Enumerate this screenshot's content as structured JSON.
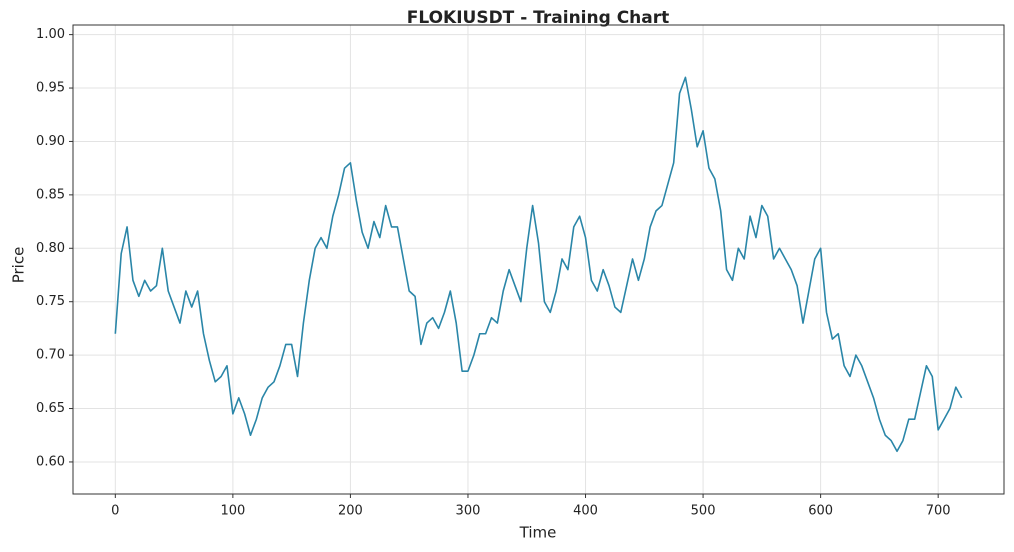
{
  "chart_data": {
    "type": "line",
    "title": "FLOKIUSDT - Training Chart",
    "x_label": "Time",
    "y_label": "Price",
    "color": "#2a86a8",
    "grid": true,
    "xlim": [
      -36,
      756
    ],
    "ylim": [
      0.57,
      1.009
    ],
    "xticks": [
      0,
      100,
      200,
      300,
      400,
      500,
      600,
      700
    ],
    "yticks": [
      {
        "value": 0.6,
        "label": "0.60"
      },
      0.65,
      {
        "value": 0.7,
        "label": "0.70"
      },
      0.75,
      {
        "value": 0.8,
        "label": "0.80"
      },
      0.85,
      {
        "value": 0.9,
        "label": "0.90"
      },
      0.95,
      {
        "value": 1,
        "label": "1.00"
      }
    ],
    "x": [
      0,
      5,
      10,
      15,
      20,
      25,
      30,
      35,
      40,
      45,
      50,
      55,
      60,
      65,
      70,
      75,
      80,
      85,
      90,
      95,
      100,
      105,
      110,
      115,
      120,
      125,
      130,
      135,
      140,
      145,
      150,
      155,
      160,
      165,
      170,
      175,
      180,
      185,
      190,
      195,
      200,
      205,
      210,
      215,
      220,
      225,
      230,
      235,
      240,
      245,
      250,
      255,
      260,
      265,
      270,
      275,
      280,
      285,
      290,
      295,
      300,
      305,
      310,
      315,
      320,
      325,
      330,
      335,
      340,
      345,
      350,
      355,
      360,
      365,
      370,
      375,
      380,
      385,
      390,
      395,
      400,
      405,
      410,
      415,
      420,
      425,
      430,
      435,
      440,
      445,
      450,
      455,
      460,
      465,
      470,
      475,
      480,
      485,
      490,
      495,
      500,
      505,
      510,
      515,
      520,
      525,
      530,
      535,
      540,
      545,
      550,
      555,
      560,
      565,
      570,
      575,
      580,
      585,
      590,
      595,
      600,
      605,
      610,
      615,
      620,
      625,
      630,
      635,
      640,
      645,
      650,
      655,
      660,
      665,
      670,
      675,
      680,
      685,
      690,
      695,
      700,
      705,
      710,
      715,
      720
    ],
    "values": [
      0.72,
      0.795,
      0.82,
      0.77,
      0.755,
      0.77,
      0.76,
      0.765,
      0.8,
      0.76,
      0.745,
      0.73,
      0.76,
      0.745,
      0.76,
      0.72,
      0.695,
      0.675,
      0.68,
      0.69,
      0.645,
      0.66,
      0.645,
      0.625,
      0.64,
      0.66,
      0.67,
      0.675,
      0.69,
      0.71,
      0.71,
      0.68,
      0.73,
      0.77,
      0.8,
      0.81,
      0.8,
      0.83,
      0.85,
      0.875,
      0.88,
      0.845,
      0.815,
      0.8,
      0.825,
      0.81,
      0.84,
      0.82,
      0.82,
      0.79,
      0.76,
      0.755,
      0.71,
      0.73,
      0.735,
      0.725,
      0.74,
      0.76,
      0.73,
      0.685,
      0.685,
      0.7,
      0.72,
      0.72,
      0.735,
      0.73,
      0.76,
      0.78,
      0.765,
      0.75,
      0.8,
      0.84,
      0.805,
      0.75,
      0.74,
      0.76,
      0.79,
      0.78,
      0.82,
      0.83,
      0.81,
      0.77,
      0.76,
      0.78,
      0.765,
      0.745,
      0.74,
      0.765,
      0.79,
      0.77,
      0.79,
      0.82,
      0.835,
      0.84,
      0.86,
      0.88,
      0.945,
      0.96,
      0.93,
      0.895,
      0.91,
      0.875,
      0.865,
      0.835,
      0.78,
      0.77,
      0.8,
      0.79,
      0.83,
      0.81,
      0.84,
      0.83,
      0.79,
      0.8,
      0.79,
      0.78,
      0.765,
      0.73,
      0.76,
      0.79,
      0.8,
      0.74,
      0.715,
      0.72,
      0.69,
      0.68,
      0.7,
      0.69,
      0.675,
      0.66,
      0.64,
      0.625,
      0.62,
      0.61,
      0.62,
      0.64,
      0.64,
      0.665,
      0.69,
      0.68,
      0.63,
      0.64,
      0.65,
      0.67,
      0.66
    ]
  }
}
